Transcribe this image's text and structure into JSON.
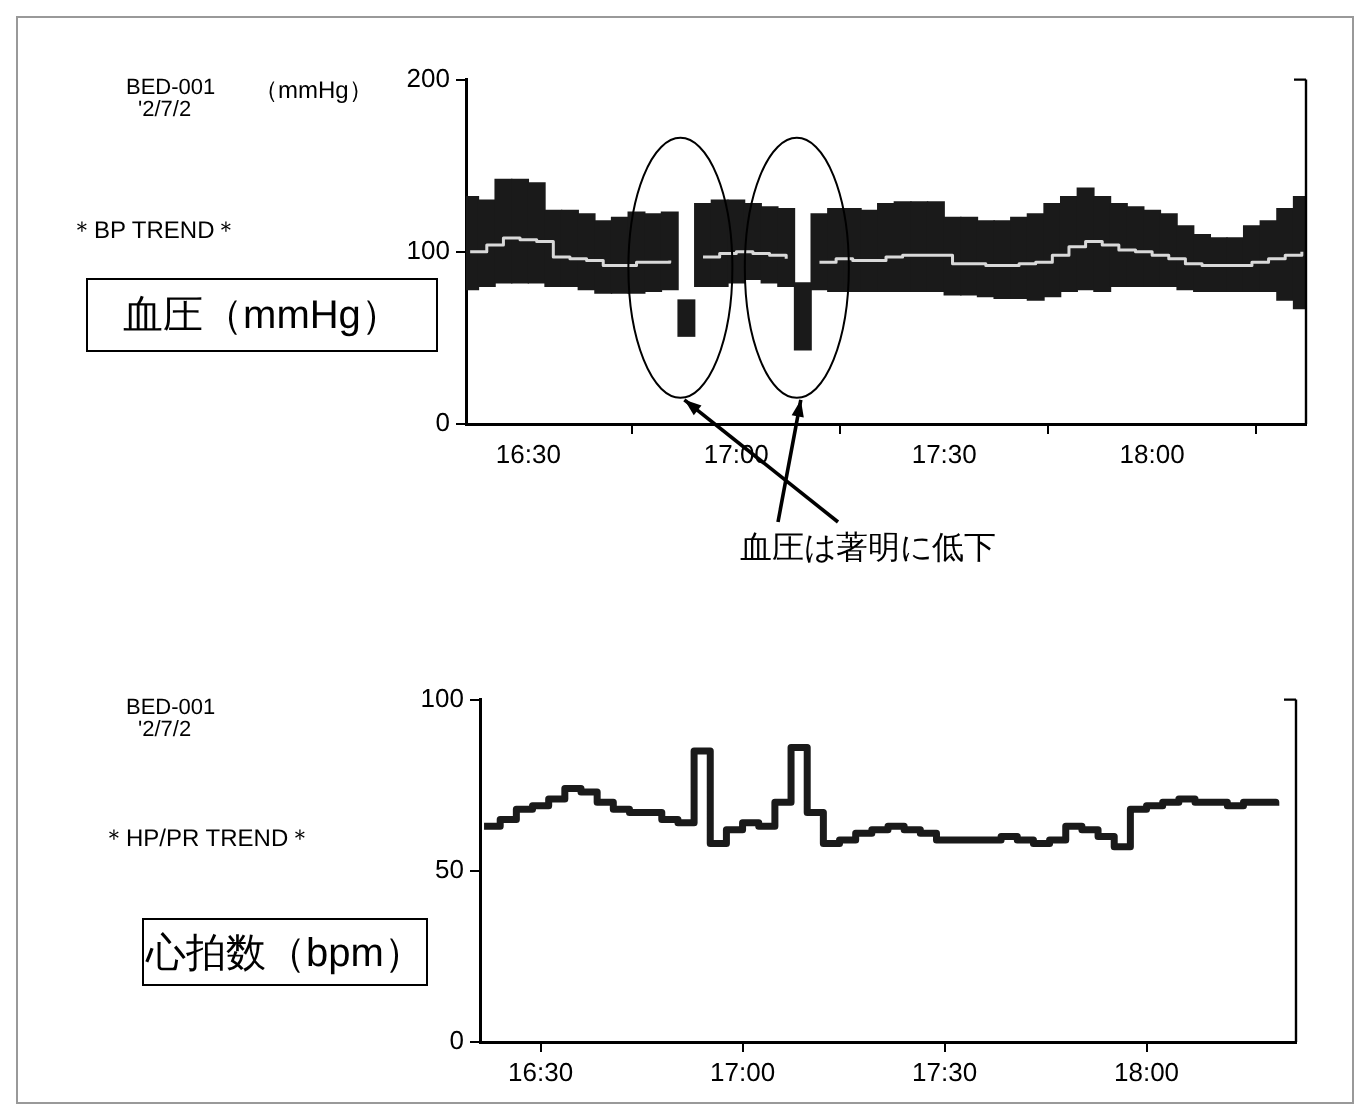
{
  "chart_data": [
    {
      "type": "bar",
      "title": "血圧（mmHg）",
      "ylabel": "（mmHg）",
      "annotations": [
        "BED-001",
        "'2/7/2",
        "＊BP TREND＊",
        "血圧は著明に低下"
      ],
      "x": [
        16.36,
        16.4,
        16.44,
        16.48,
        16.52,
        16.56,
        16.6,
        16.64,
        16.68,
        16.72,
        16.76,
        16.8,
        16.84,
        16.88,
        16.92,
        16.96,
        17,
        17.04,
        17.08,
        17.12,
        17.16,
        17.2,
        17.24,
        17.28,
        17.32,
        17.36,
        17.4,
        17.44,
        17.48,
        17.52,
        17.56,
        17.6,
        17.64,
        17.68,
        17.72,
        17.76,
        17.8,
        17.84,
        17.88,
        17.92,
        17.96,
        18,
        18.04,
        18.08,
        18.12,
        18.16,
        18.2,
        18.24,
        18.28,
        18.32,
        18.36
      ],
      "series": [
        {
          "color": "#1a1a1a",
          "base": [
            78,
            80,
            82,
            82,
            82,
            80,
            80,
            78,
            76,
            76,
            76,
            77,
            78,
            51,
            80,
            80,
            82,
            84,
            82,
            80,
            43,
            78,
            77,
            77,
            77,
            77,
            77,
            77,
            77,
            75,
            75,
            74,
            73,
            73,
            72,
            74,
            77,
            78,
            77,
            80,
            80,
            80,
            80,
            78,
            77,
            77,
            77,
            77,
            77,
            72,
            67
          ],
          "values": [
            54,
            50,
            60,
            60,
            58,
            44,
            44,
            44,
            42,
            44,
            47,
            45,
            45,
            21,
            48,
            50,
            48,
            44,
            44,
            45,
            39,
            44,
            48,
            48,
            47,
            51,
            52,
            52,
            52,
            45,
            45,
            44,
            45,
            47,
            50,
            54,
            55,
            59,
            55,
            48,
            46,
            44,
            42,
            37,
            33,
            31,
            31,
            38,
            41,
            53,
            65
          ]
        },
        {
          "type": "step",
          "color": "#d9d9d9",
          "values": [
            100,
            104,
            108,
            107,
            106,
            97,
            96,
            95,
            92,
            92,
            94,
            94,
            95,
            null,
            97,
            99,
            100,
            99,
            98,
            96,
            null,
            94,
            96,
            95,
            95,
            97,
            98,
            98,
            98,
            93,
            93,
            92,
            92,
            93,
            94,
            98,
            103,
            106,
            104,
            101,
            100,
            98,
            96,
            93,
            92,
            92,
            92,
            94,
            96,
            98,
            100
          ]
        }
      ],
      "xlim": [
        16.35,
        18.37
      ],
      "xticks": [
        {
          "value": 16.5,
          "label": "16:30"
        },
        {
          "value": 17,
          "label": "17:00"
        },
        {
          "value": 17.5,
          "label": "17:30"
        },
        {
          "value": 18,
          "label": "18:00"
        }
      ],
      "ylim": [
        0,
        200
      ],
      "yticks": [
        0,
        100,
        200
      ]
    },
    {
      "type": "step",
      "title": "心拍数（bpm）",
      "annotations": [
        "BED-001",
        "'2/7/2",
        "＊HP/PR TREND＊"
      ],
      "x": [
        16.36,
        16.4,
        16.44,
        16.48,
        16.52,
        16.56,
        16.6,
        16.64,
        16.68,
        16.72,
        16.76,
        16.8,
        16.84,
        16.88,
        16.92,
        16.96,
        17,
        17.04,
        17.08,
        17.12,
        17.16,
        17.2,
        17.24,
        17.28,
        17.32,
        17.36,
        17.4,
        17.44,
        17.48,
        17.52,
        17.56,
        17.6,
        17.64,
        17.68,
        17.72,
        17.76,
        17.8,
        17.84,
        17.88,
        17.92,
        17.96,
        18,
        18.04,
        18.08,
        18.12,
        18.16,
        18.2,
        18.24,
        18.28,
        18.32
      ],
      "series": [
        {
          "color": "#1a1a1a",
          "values": [
            63,
            65,
            68,
            69,
            71,
            74,
            73,
            70,
            68,
            67,
            67,
            65,
            64,
            85,
            58,
            62,
            64,
            63,
            70,
            86,
            67,
            58,
            59,
            61,
            62,
            63,
            62,
            61,
            59,
            59,
            59,
            59,
            60,
            59,
            58,
            59,
            63,
            62,
            60,
            57,
            68,
            69,
            70,
            71,
            70,
            70,
            69,
            70,
            70,
            69
          ]
        }
      ],
      "xlim": [
        16.35,
        18.37
      ],
      "xticks": [
        {
          "value": 16.5,
          "label": "16:30"
        },
        {
          "value": 17,
          "label": "17:00"
        },
        {
          "value": 17.5,
          "label": "17:30"
        },
        {
          "value": 18,
          "label": "18:00"
        }
      ],
      "ylim": [
        0,
        100
      ],
      "yticks": [
        0,
        50,
        100
      ]
    }
  ]
}
